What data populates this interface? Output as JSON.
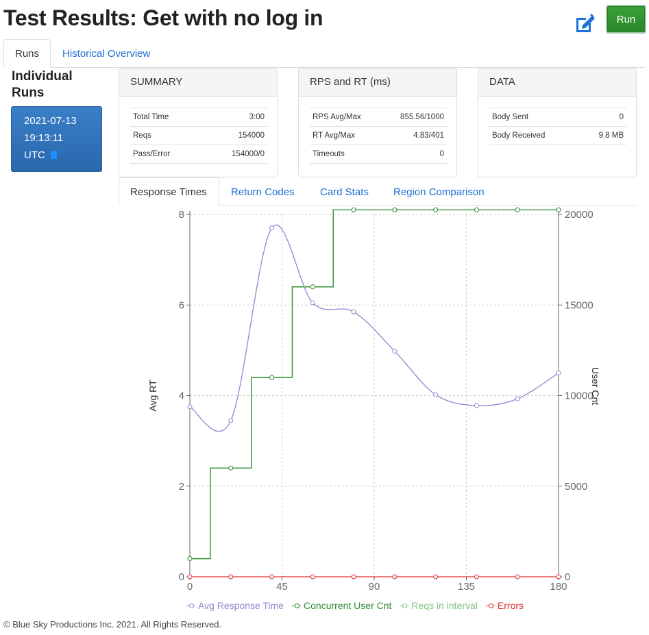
{
  "page": {
    "title": "Test Results: Get with no log in",
    "run_label": "Run",
    "edit_icon": "edit-icon"
  },
  "tabs": [
    {
      "label": "Runs",
      "active": true
    },
    {
      "label": "Historical Overview",
      "active": false
    }
  ],
  "runs": {
    "heading": "Individual Runs",
    "items": [
      {
        "date": "2021-07-13",
        "time": "19:13:11",
        "zone": "UTC"
      }
    ]
  },
  "summary": {
    "title": "SUMMARY",
    "rows": [
      {
        "label": "Total Time",
        "value": "3:00"
      },
      {
        "label": "Reqs",
        "value": "154000"
      },
      {
        "label": "Pass/Error",
        "value": "154000/0"
      }
    ]
  },
  "rps": {
    "title": "RPS and RT (ms)",
    "rows": [
      {
        "label": "RPS Avg/Max",
        "value": "855.56/1000"
      },
      {
        "label": "RT Avg/Max",
        "value": "4.83/401"
      },
      {
        "label": "Timeouts",
        "value": "0"
      }
    ]
  },
  "data_panel": {
    "title": "DATA",
    "rows": [
      {
        "label": "Body Sent",
        "value": "0"
      },
      {
        "label": "Body Received",
        "value": "9.8 MB"
      }
    ]
  },
  "chart_tabs": [
    {
      "label": "Response Times",
      "active": true
    },
    {
      "label": "Return Codes",
      "active": false
    },
    {
      "label": "Card Stats",
      "active": false
    },
    {
      "label": "Region Comparison",
      "active": false
    }
  ],
  "chart_data": {
    "type": "line",
    "xlim": [
      0,
      180
    ],
    "xticks": [
      0,
      45,
      90,
      135,
      180
    ],
    "y_left": {
      "label": "Avg RT",
      "lim": [
        0,
        8
      ],
      "ticks": [
        0,
        2,
        4,
        6,
        8
      ]
    },
    "y_right": {
      "label": "User Cnt",
      "lim": [
        0,
        20000
      ],
      "ticks": [
        0,
        5000,
        10000,
        15000,
        20000
      ]
    },
    "grid": true,
    "legend_position": "bottom",
    "series": [
      {
        "name": "Avg Response Time",
        "axis": "left",
        "color": "#8f86cf",
        "smooth": true,
        "step": false,
        "x": [
          0,
          20,
          40,
          60,
          80,
          100,
          120,
          140,
          160,
          180
        ],
        "y": [
          3.75,
          3.45,
          7.7,
          6.05,
          5.85,
          4.98,
          4.02,
          3.78,
          3.93,
          4.5
        ]
      },
      {
        "name": "Concurrent User Cnt",
        "axis": "right",
        "color": "#2e8b2e",
        "smooth": false,
        "step": true,
        "x": [
          0,
          20,
          40,
          60,
          80,
          100,
          120,
          140,
          160,
          180
        ],
        "y": [
          1000,
          6000,
          11000,
          16000,
          20250,
          20250,
          20250,
          20250,
          20250,
          20250
        ]
      },
      {
        "name": "Reqs in interval",
        "axis": "right",
        "color": "#7dc47d",
        "smooth": false,
        "step": true,
        "x": [
          0,
          20,
          40,
          60,
          80,
          100,
          120,
          140,
          160,
          180
        ],
        "y": [
          1000,
          6000,
          11000,
          16000,
          20250,
          20250,
          20250,
          20250,
          20250,
          20250
        ]
      },
      {
        "name": "Errors",
        "axis": "left",
        "color": "#e03030",
        "smooth": false,
        "step": false,
        "x": [
          0,
          20,
          40,
          60,
          80,
          100,
          120,
          140,
          160,
          180
        ],
        "y": [
          0,
          0,
          0,
          0,
          0,
          0,
          0,
          0,
          0,
          0
        ]
      }
    ]
  },
  "footer": "© Blue Sky Productions Inc. 2021. All Rights Reserved."
}
